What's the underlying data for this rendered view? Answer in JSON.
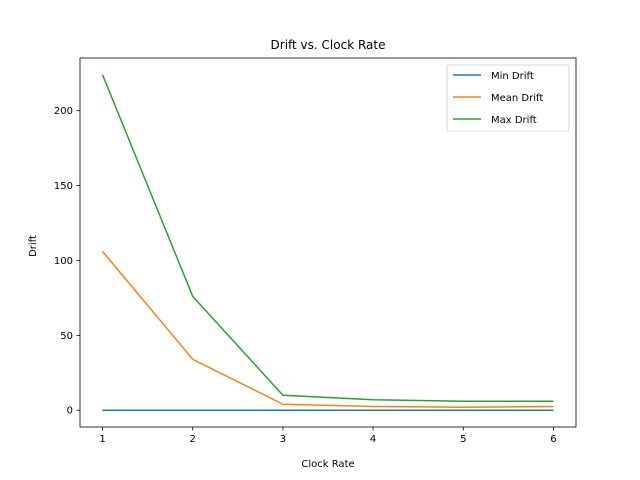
{
  "chart_data": {
    "type": "line",
    "title": "Drift vs. Clock Rate",
    "xlabel": "Clock Rate",
    "ylabel": "Drift",
    "x": [
      1,
      2,
      3,
      4,
      5,
      6
    ],
    "xticks": [
      1,
      2,
      3,
      4,
      5,
      6
    ],
    "yticks": [
      0,
      50,
      100,
      150,
      200
    ],
    "xlim": [
      0.75,
      6.25
    ],
    "ylim": [
      -11.2,
      235.2
    ],
    "grid": false,
    "legend_position": "top-right",
    "series": [
      {
        "name": "Min Drift",
        "color": "#1f77b4",
        "values": [
          0,
          0,
          0,
          0,
          0,
          0
        ]
      },
      {
        "name": "Mean Drift",
        "color": "#ff7f0e",
        "values": [
          106,
          34,
          4,
          2.5,
          2,
          2.5
        ]
      },
      {
        "name": "Max Drift",
        "color": "#2ca02c",
        "values": [
          224,
          76,
          10,
          7,
          6,
          6
        ]
      }
    ]
  }
}
